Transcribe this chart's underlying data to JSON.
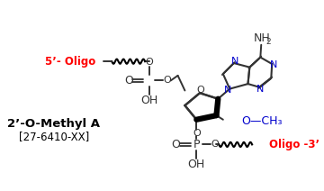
{
  "bg_color": "#ffffff",
  "title_label": "2’-O-Methyl A",
  "catalog_label": "[27-6410-XX]",
  "oligo5_label": "5’- Oligo",
  "oligo3_label": "Oligo -3’",
  "och3_label": "O—CH₃",
  "red_color": "#ff0000",
  "blue_color": "#0000cc",
  "black_color": "#000000",
  "gray_color": "#333333"
}
